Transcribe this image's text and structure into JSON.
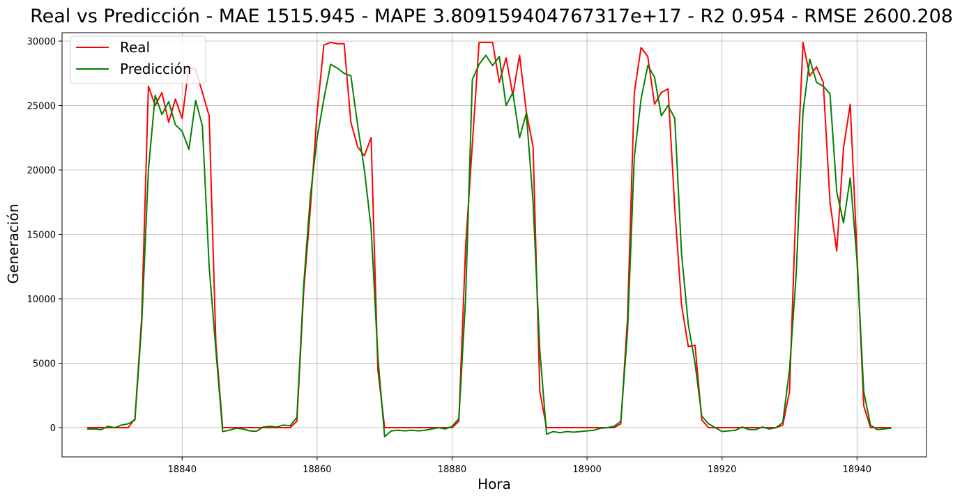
{
  "chart_data": {
    "type": "line",
    "title": "Real vs Predicción - MAE 1515.945 - MAPE 3.809159404767317e+17 - R2 0.954 - RMSE 2600.208",
    "xlabel": "Hora",
    "ylabel": "Generación",
    "xlim": [
      18822.2,
      18950.3
    ],
    "ylim": [
      -2270,
      30650
    ],
    "xticks": [
      18840,
      18860,
      18880,
      18900,
      18920,
      18940
    ],
    "yticks": [
      0,
      5000,
      10000,
      15000,
      20000,
      25000,
      30000
    ],
    "grid": true,
    "legend_position": "top-left",
    "x": [
      18826,
      18827,
      18828,
      18829,
      18830,
      18831,
      18832,
      18833,
      18834,
      18835,
      18836,
      18837,
      18838,
      18839,
      18840,
      18841,
      18842,
      18843,
      18844,
      18845,
      18846,
      18847,
      18848,
      18849,
      18850,
      18851,
      18852,
      18853,
      18854,
      18855,
      18856,
      18857,
      18858,
      18859,
      18860,
      18861,
      18862,
      18863,
      18864,
      18865,
      18866,
      18867,
      18868,
      18869,
      18870,
      18871,
      18872,
      18873,
      18874,
      18875,
      18876,
      18877,
      18878,
      18879,
      18880,
      18881,
      18882,
      18883,
      18884,
      18885,
      18886,
      18887,
      18888,
      18889,
      18890,
      18891,
      18892,
      18893,
      18894,
      18895,
      18896,
      18897,
      18898,
      18899,
      18900,
      18901,
      18902,
      18903,
      18904,
      18905,
      18906,
      18907,
      18908,
      18909,
      18910,
      18911,
      18912,
      18913,
      18914,
      18915,
      18916,
      18917,
      18918,
      18919,
      18920,
      18921,
      18922,
      18923,
      18924,
      18925,
      18926,
      18927,
      18928,
      18929,
      18930,
      18931,
      18932,
      18933,
      18934,
      18935,
      18936,
      18937,
      18938,
      18939,
      18940,
      18941,
      18942,
      18943,
      18944,
      18945
    ],
    "series": [
      {
        "name": "Real",
        "color": "#ff0000",
        "values": [
          0,
          0,
          0,
          0,
          0,
          0,
          0,
          700,
          8500,
          26500,
          25000,
          26000,
          23700,
          25500,
          24000,
          28000,
          27800,
          26000,
          24200,
          6500,
          0,
          0,
          0,
          0,
          0,
          0,
          0,
          0,
          0,
          0,
          0,
          500,
          10500,
          17000,
          24500,
          29700,
          29900,
          29800,
          29800,
          23700,
          21800,
          21100,
          22500,
          4500,
          0,
          0,
          0,
          0,
          0,
          0,
          0,
          0,
          0,
          0,
          0,
          500,
          14000,
          22000,
          29900,
          29900,
          29900,
          26800,
          28700,
          25800,
          28900,
          24500,
          21800,
          2800,
          0,
          0,
          0,
          0,
          0,
          0,
          0,
          0,
          0,
          0,
          0,
          300,
          8500,
          26000,
          29500,
          28800,
          25100,
          26000,
          26300,
          17000,
          9500,
          6300,
          6400,
          600,
          0,
          0,
          0,
          0,
          0,
          0,
          0,
          0,
          0,
          0,
          0,
          200,
          2800,
          18000,
          29900,
          27300,
          28000,
          26800,
          17500,
          13700,
          21700,
          25100,
          13500,
          1700,
          0,
          0,
          0,
          0
        ]
      },
      {
        "name": "Predicción",
        "color": "#008000",
        "values": [
          -100,
          -100,
          -150,
          100,
          0,
          200,
          300,
          600,
          8000,
          20000,
          25800,
          24300,
          25300,
          23500,
          23000,
          21600,
          25400,
          23400,
          12500,
          6000,
          -300,
          -200,
          -50,
          -100,
          -250,
          -280,
          50,
          100,
          50,
          200,
          150,
          800,
          11000,
          18000,
          22500,
          25500,
          28200,
          27900,
          27500,
          27300,
          23500,
          20000,
          15500,
          5500,
          -700,
          -250,
          -200,
          -250,
          -200,
          -250,
          -200,
          -100,
          0,
          -100,
          100,
          700,
          10000,
          27000,
          28200,
          28900,
          28100,
          28800,
          25000,
          26000,
          22500,
          24400,
          17500,
          6000,
          -500,
          -300,
          -400,
          -300,
          -350,
          -300,
          -250,
          -200,
          -50,
          0,
          100,
          500,
          7500,
          21000,
          25500,
          28100,
          27200,
          24200,
          25000,
          24000,
          13500,
          8000,
          5000,
          900,
          300,
          0,
          -300,
          -250,
          -200,
          50,
          -150,
          -150,
          50,
          -100,
          0,
          400,
          4500,
          12000,
          24500,
          28600,
          26800,
          26500,
          25900,
          18300,
          15900,
          19400,
          13000,
          2800,
          200,
          -150,
          -100,
          -50
        ]
      }
    ]
  }
}
